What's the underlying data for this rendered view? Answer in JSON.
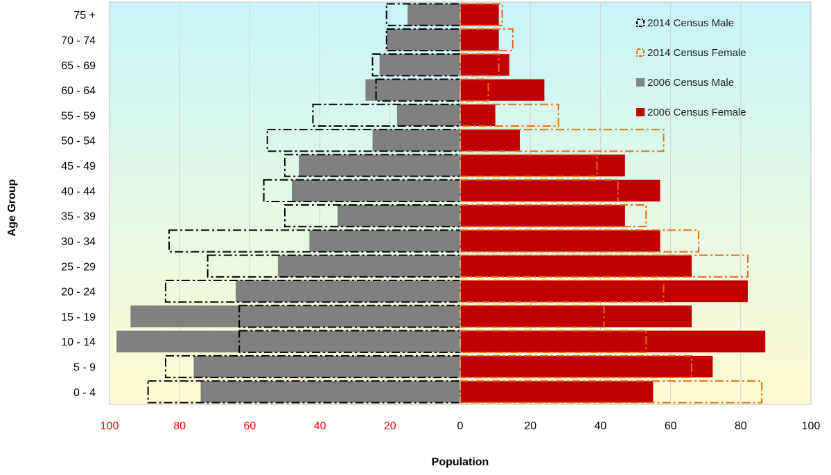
{
  "chart_data": {
    "type": "bar",
    "orientation": "horizontal",
    "subtype": "population-pyramid",
    "title": "",
    "xlabel": "Population",
    "ylabel": "Age Group",
    "xlim": [
      -100,
      100
    ],
    "x_ticks": [
      -100,
      -80,
      -60,
      -40,
      -20,
      0,
      20,
      40,
      60,
      80,
      100
    ],
    "x_tick_labels": [
      "100",
      "80",
      "60",
      "40",
      "20",
      "0",
      "20",
      "40",
      "60",
      "80",
      "100"
    ],
    "categories": [
      "0 - 4",
      "5 - 9",
      "10 - 14",
      "15 - 19",
      "20 - 24",
      "25 - 29",
      "30 - 34",
      "35 - 39",
      "40 - 44",
      "45 - 49",
      "50 - 54",
      "55 - 59",
      "60 - 64",
      "65 - 69",
      "70 - 74",
      "75 +"
    ],
    "series": [
      {
        "name": "2014 Census Male",
        "side": "left",
        "style": "outline",
        "color": "#000000",
        "values": [
          89,
          84,
          63,
          63,
          84,
          72,
          83,
          50,
          56,
          50,
          55,
          42,
          24,
          25,
          21,
          21
        ]
      },
      {
        "name": "2014 Census Female",
        "side": "right",
        "style": "outline",
        "color": "#e46c0a",
        "values": [
          86,
          66,
          53,
          41,
          58,
          82,
          68,
          53,
          45,
          39,
          58,
          28,
          8,
          11,
          15,
          12
        ]
      },
      {
        "name": "2006 Census Male",
        "side": "left",
        "style": "fill",
        "color": "#808080",
        "values": [
          74,
          76,
          98,
          94,
          64,
          52,
          43,
          35,
          48,
          46,
          25,
          18,
          27,
          23,
          21,
          15
        ]
      },
      {
        "name": "2006 Census Female",
        "side": "right",
        "style": "fill",
        "color": "#c00000",
        "values": [
          55,
          72,
          87,
          66,
          82,
          66,
          57,
          47,
          57,
          47,
          17,
          10,
          24,
          14,
          11,
          11
        ]
      }
    ],
    "legend_position": "top-right",
    "grid": true,
    "colors": {
      "background_top": "#c8f4f9",
      "background_bottom": "#fffbd2",
      "gridline": "#d0d0d0",
      "negative_tick_label": "#ff0000"
    }
  }
}
